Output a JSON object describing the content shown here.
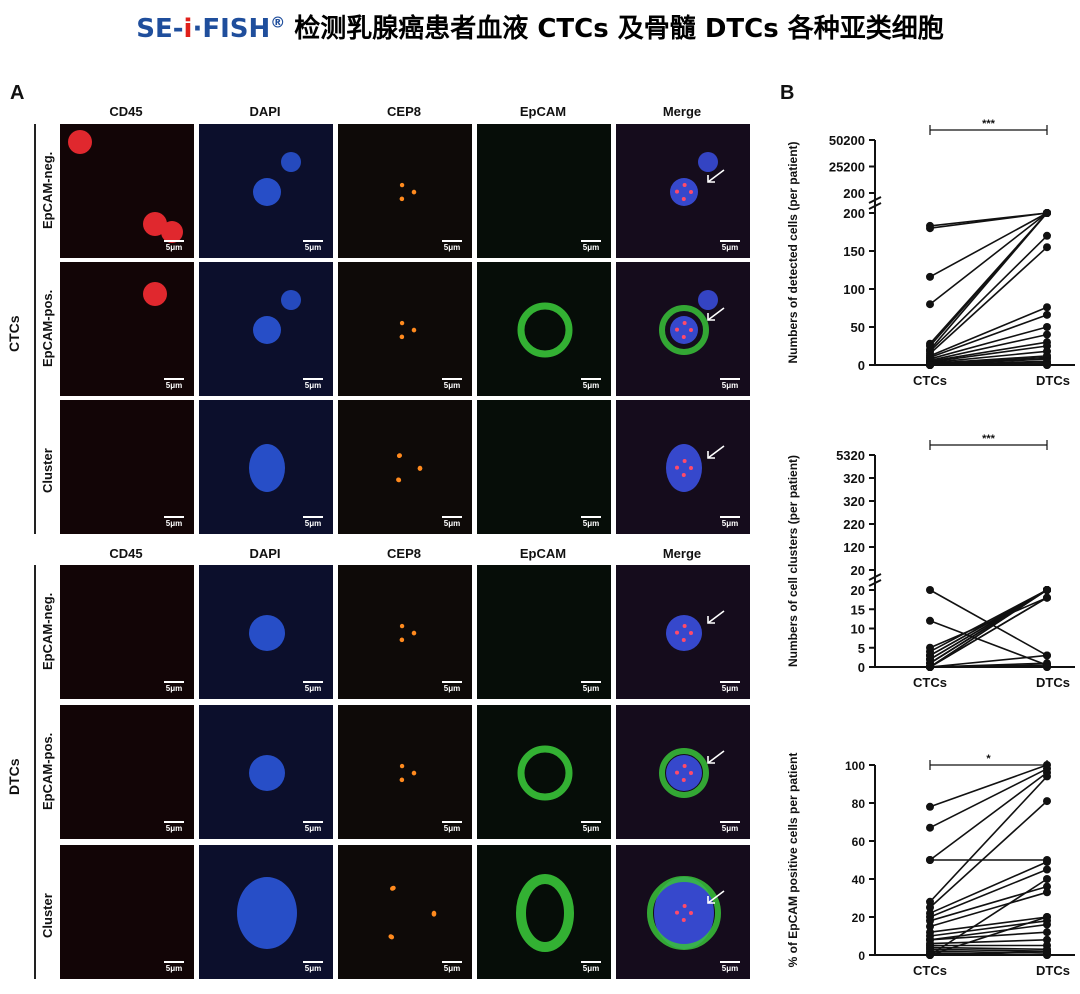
{
  "title": {
    "brand_a": "SE-",
    "brand_i": "i",
    "brand_b": "·FISH",
    "reg": "®",
    "rest": " 检测乳腺癌患者血液 CTCs 及骨髓 DTCs 各种亚类细胞"
  },
  "panels": {
    "a": "A",
    "b": "B"
  },
  "columns": [
    "CD45",
    "DAPI",
    "CEP8",
    "EpCAM",
    "Merge"
  ],
  "groups": [
    {
      "name": "CTCs",
      "rows": [
        "EpCAM-neg.",
        "EpCAM-pos.",
        "Cluster"
      ]
    },
    {
      "name": "DTCs",
      "rows": [
        "EpCAM-neg.",
        "EpCAM-pos.",
        "Cluster"
      ]
    }
  ],
  "scale_bar": "5μm",
  "chart_data": [
    {
      "type": "scatter",
      "title": "",
      "ylabel": "Numbers of detected cells (per patient)",
      "categories": [
        "CTCs",
        "DTCs"
      ],
      "y_ticks_lower": [
        "0",
        "50",
        "100",
        "150",
        "200"
      ],
      "y_ticks_upper": [
        "200",
        "25200",
        "50200"
      ],
      "significance": "***",
      "pairs": [
        [
          183,
          200
        ],
        [
          180,
          200
        ],
        [
          116,
          200
        ],
        [
          80,
          200
        ],
        [
          28,
          200
        ],
        [
          25,
          200
        ],
        [
          20,
          200
        ],
        [
          18,
          170
        ],
        [
          15,
          155
        ],
        [
          12,
          76
        ],
        [
          10,
          66
        ],
        [
          8,
          50
        ],
        [
          6,
          40
        ],
        [
          5,
          30
        ],
        [
          4,
          25
        ],
        [
          3,
          18
        ],
        [
          2,
          12
        ],
        [
          1,
          10
        ],
        [
          0,
          8
        ],
        [
          0,
          5
        ],
        [
          0,
          3
        ],
        [
          0,
          1
        ],
        [
          0,
          0
        ],
        [
          0,
          0
        ]
      ]
    },
    {
      "type": "scatter",
      "title": "",
      "ylabel": "Numbers of cell clusters (per patient)",
      "categories": [
        "CTCs",
        "DTCs"
      ],
      "y_ticks_lower": [
        "0",
        "5",
        "10",
        "15",
        "20"
      ],
      "y_ticks_upper": [
        "20",
        "120",
        "220",
        "320",
        "320",
        "5320"
      ],
      "significance": "***",
      "pairs": [
        [
          20,
          3
        ],
        [
          12,
          0.5
        ],
        [
          5,
          18
        ],
        [
          4,
          20
        ],
        [
          3,
          20
        ],
        [
          3,
          20
        ],
        [
          2,
          20
        ],
        [
          2,
          20
        ],
        [
          1,
          20
        ],
        [
          1,
          20
        ],
        [
          1,
          20
        ],
        [
          0,
          20
        ],
        [
          0,
          18
        ],
        [
          0,
          18
        ],
        [
          0,
          3
        ],
        [
          0,
          1
        ],
        [
          0,
          0.5
        ],
        [
          0,
          0
        ],
        [
          0,
          0
        ],
        [
          0,
          20
        ]
      ]
    },
    {
      "type": "scatter",
      "title": "",
      "ylabel": "% of EpCAM positive cells per patient",
      "categories": [
        "CTCs",
        "DTCs"
      ],
      "y_ticks": [
        "0",
        "20",
        "40",
        "60",
        "80",
        "100"
      ],
      "ylim": [
        0,
        100
      ],
      "significance": "*",
      "pairs": [
        [
          78,
          100
        ],
        [
          67,
          98
        ],
        [
          50,
          50
        ],
        [
          50,
          96
        ],
        [
          28,
          94
        ],
        [
          25,
          81
        ],
        [
          22,
          49
        ],
        [
          20,
          45
        ],
        [
          18,
          36
        ],
        [
          15,
          33
        ],
        [
          12,
          20
        ],
        [
          10,
          18
        ],
        [
          8,
          16
        ],
        [
          8,
          12
        ],
        [
          6,
          8
        ],
        [
          5,
          5
        ],
        [
          4,
          3
        ],
        [
          3,
          2
        ],
        [
          2,
          1
        ],
        [
          1,
          0
        ],
        [
          0,
          0
        ],
        [
          0,
          20
        ],
        [
          0,
          2
        ],
        [
          0,
          40
        ]
      ]
    }
  ]
}
